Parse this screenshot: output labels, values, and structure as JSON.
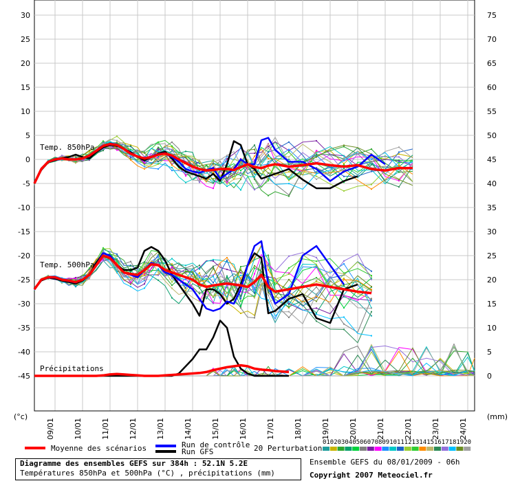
{
  "chart_data": {
    "type": "line",
    "title": "Diagramme des ensembles GEFS sur 384h : 52.1N 5.2E",
    "subtitle": "Températures 850hPa et 500hPa (°C) , précipitations (mm)",
    "left_axis": {
      "unit": "(°c)",
      "ticks": [
        "30",
        "25",
        "20",
        "15",
        "10",
        "5",
        "0",
        "-5",
        "-10",
        "-15",
        "-20",
        "-25",
        "-30",
        "-35",
        "-40",
        "-45"
      ],
      "ylim": [
        -50,
        30
      ]
    },
    "right_axis": {
      "unit": "(mm)",
      "ticks": [
        "75",
        "70",
        "65",
        "60",
        "55",
        "50",
        "45",
        "40",
        "35",
        "30",
        "25",
        "20",
        "15",
        "10",
        "5",
        "0"
      ]
    },
    "x_ticks": [
      "09/01",
      "10/01",
      "11/01",
      "12/01",
      "13/01",
      "14/01",
      "15/01",
      "16/01",
      "17/01",
      "18/01",
      "19/01",
      "20/01",
      "21/01",
      "22/01",
      "23/01",
      "24/01"
    ],
    "x_range_days": [
      8.25,
      24.25
    ],
    "grid": true,
    "panel_labels": {
      "t850": "Temp. 850hPa",
      "t500": "Temp. 500hPa",
      "precip": "Précipitations"
    },
    "legend": {
      "mean_label": "Moyenne des scénarios",
      "control_label": "Run de contrôle",
      "gfs_label": "Run GFS",
      "perturbations_label": "20 Perturbations",
      "perturbation_ids": [
        "01",
        "02",
        "03",
        "04",
        "05",
        "06",
        "07",
        "08",
        "09",
        "10",
        "11",
        "12",
        "13",
        "14",
        "15",
        "16",
        "17",
        "18",
        "19",
        "20"
      ]
    },
    "colors": {
      "mean": "#ff0000",
      "control": "#0000ff",
      "gfs": "#000000",
      "perturbations": [
        "#1f9e9e",
        "#c8b400",
        "#2fa62f",
        "#0aa06e",
        "#00d23c",
        "#808080",
        "#7a1fa2",
        "#ff00ff",
        "#1e90ff",
        "#00c8c8",
        "#1e64c8",
        "#9acd32",
        "#32cd32",
        "#ff8c00",
        "#bdb76b",
        "#2e8b57",
        "#9370db",
        "#00bfff",
        "#6b8e23",
        "#a0a0a0"
      ]
    },
    "x_days": [
      8.25,
      8.5,
      8.75,
      9.0,
      9.25,
      9.5,
      9.75,
      10.0,
      10.25,
      10.5,
      10.75,
      11.0,
      11.25,
      11.5,
      11.75,
      12.0,
      12.25,
      12.5,
      12.75,
      13.0,
      13.25,
      13.5,
      13.75,
      14.0,
      14.25,
      14.5,
      14.75,
      15.0,
      15.25,
      15.5,
      15.75,
      16.0,
      16.25,
      16.5,
      16.75,
      17.0,
      17.5,
      18.0,
      18.5,
      19.0,
      19.5,
      20.0,
      20.5,
      21.0,
      21.5,
      22.0,
      22.5,
      23.0,
      23.5,
      24.0,
      24.25
    ],
    "series": [
      {
        "name": "Moyenne des scénarios",
        "group": "t850",
        "values": [
          -5,
          -2,
          -0.5,
          0,
          0.2,
          0,
          0,
          0.2,
          0.8,
          1.8,
          2.8,
          3.2,
          3.0,
          2.2,
          1.2,
          0.6,
          0.2,
          0.5,
          1.0,
          1.2,
          0.8,
          0,
          -0.8,
          -1.5,
          -2,
          -2.3,
          -2.2,
          -2,
          -2,
          -2.2,
          -1.6,
          -1,
          -1.6,
          -1.8,
          -1.3,
          -1,
          -1.5,
          -1.2,
          -0.8,
          -1.2,
          -1.5,
          -1.2,
          -2,
          -2.3,
          -1.8,
          -1.8
        ]
      },
      {
        "name": "Run de contrôle",
        "group": "t850",
        "values": [
          -5,
          -2,
          -0.6,
          -0.1,
          0.2,
          0,
          0,
          0.2,
          0.9,
          1.9,
          2.9,
          3.3,
          3.1,
          2.2,
          1.3,
          0.6,
          0.3,
          0.6,
          1.1,
          1.3,
          0.5,
          -0.5,
          -2,
          -2.5,
          -2.8,
          -2.2,
          -1.8,
          -4,
          -3,
          -2,
          0,
          -1,
          -1,
          4,
          4.5,
          2,
          -0.5,
          -0.5,
          -2,
          -4.5,
          -2.5,
          -1.5,
          1,
          -1
        ]
      },
      {
        "name": "Run GFS",
        "group": "t850",
        "values": [
          -5,
          -2.2,
          -0.6,
          -0.2,
          0.3,
          0.5,
          1,
          0.5,
          0.2,
          1.5,
          2.5,
          3,
          2.8,
          2.2,
          1.5,
          0.5,
          -0.2,
          0.5,
          1.2,
          1.6,
          0.2,
          -1.5,
          -2.5,
          -3,
          -3.5,
          -4,
          -3,
          -4.5,
          -1,
          3.8,
          3,
          -1,
          -2,
          -4,
          -3.5,
          -3,
          -2,
          -4.2,
          -6,
          -6,
          -4.5,
          -3.5
        ]
      },
      {
        "name": "Moyenne des scénarios",
        "group": "t500",
        "values": [
          -27,
          -25,
          -24.5,
          -24.5,
          -25,
          -25.2,
          -25.5,
          -25,
          -24,
          -22,
          -20,
          -20.5,
          -22,
          -23.5,
          -23.8,
          -24,
          -23,
          -21.8,
          -22,
          -23,
          -23.5,
          -24,
          -24.5,
          -25,
          -26,
          -26.5,
          -26.2,
          -26,
          -25.8,
          -26,
          -26.2,
          -26.5,
          -25.5,
          -24,
          -26.5,
          -27.5,
          -27,
          -26.5,
          -26,
          -26.5,
          -27,
          -27.5,
          -27.8
        ]
      },
      {
        "name": "Run de contrôle",
        "group": "t500",
        "values": [
          -27,
          -25,
          -24.6,
          -24.6,
          -25,
          -25.3,
          -25.6,
          -25,
          -24,
          -22,
          -19.5,
          -20,
          -22,
          -23.5,
          -24,
          -24.5,
          -23,
          -21.5,
          -22,
          -23.5,
          -24,
          -25,
          -26,
          -27,
          -29,
          -31,
          -31.5,
          -31,
          -29.5,
          -30,
          -27,
          -22,
          -18,
          -17,
          -26,
          -30,
          -28,
          -20,
          -18,
          -22,
          -26
        ]
      },
      {
        "name": "Run GFS",
        "group": "t500",
        "values": [
          -27,
          -25.2,
          -24.6,
          -24.8,
          -25.2,
          -25.5,
          -25.8,
          -25.2,
          -24,
          -21.5,
          -19.5,
          -20,
          -22,
          -23,
          -23,
          -22.5,
          -19,
          -18.2,
          -19,
          -21,
          -24,
          -26,
          -28,
          -30,
          -32.5,
          -27,
          -27,
          -28,
          -30,
          -29,
          -26,
          -22,
          -19.5,
          -20.5,
          -32,
          -31.5,
          -29,
          -28,
          -33,
          -34,
          -27,
          -26
        ]
      },
      {
        "name": "Moyenne des scénarios",
        "group": "precip",
        "values": [
          0,
          0,
          0,
          0,
          0,
          0,
          0,
          0,
          0,
          0,
          0.1,
          0.3,
          0.4,
          0.3,
          0.2,
          0.1,
          0,
          0,
          0,
          0.1,
          0.2,
          0.3,
          0.4,
          0.5,
          0.6,
          0.8,
          1.2,
          1.5,
          1.8,
          2.0,
          2.2,
          2.0,
          1.5,
          1.3,
          1.2,
          1.0,
          0.8
        ]
      },
      {
        "name": "Run GFS",
        "group": "precip",
        "values": [
          0,
          0,
          0,
          0,
          0,
          0,
          0,
          0,
          0,
          0,
          0,
          0,
          0,
          0,
          0,
          0,
          0,
          0,
          0,
          0,
          0,
          0.5,
          2,
          3.5,
          5.5,
          5.5,
          8,
          11.5,
          10,
          4,
          1.5,
          0.5,
          0,
          0,
          0,
          0,
          0
        ]
      }
    ]
  },
  "info": {
    "title": "Diagramme des ensembles GEFS sur 384h : 52.1N 5.2E",
    "subtitle": "Températures 850hPa et 500hPa (°C) , précipitations (mm)",
    "run": "Ensemble GEFS du 08/01/2009 - 06h",
    "copyright": "Copyright 2007 Meteociel.fr"
  }
}
